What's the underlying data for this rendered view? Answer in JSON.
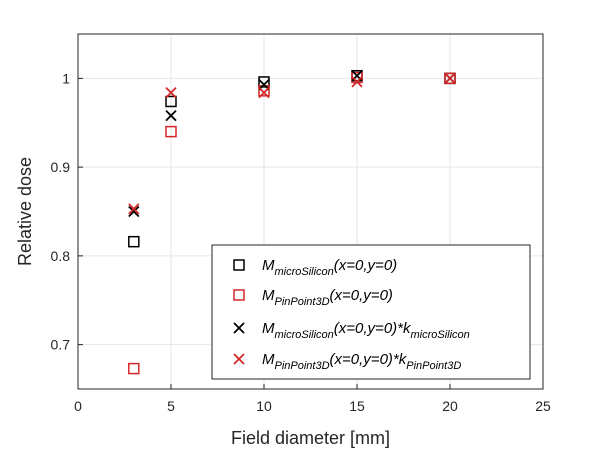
{
  "chart_data": {
    "type": "scatter",
    "xlabel": "Field diameter [mm]",
    "ylabel": "Relative dose",
    "xlim": [
      0,
      25
    ],
    "ylim": [
      0.65,
      1.05
    ],
    "xticks": [
      0,
      5,
      10,
      15,
      20,
      25
    ],
    "yticks": [
      0.7,
      0.8,
      0.9,
      1
    ],
    "ytick_labels": [
      "0.7",
      "0.8",
      "0.9",
      "1"
    ],
    "grid": true,
    "legend_position": "bottom-right",
    "series": [
      {
        "marker": "square",
        "color": "#000000",
        "legend": {
          "main": "M",
          "sub": "microSilicon",
          "rest": "(x=0,y=0)",
          "sub2": ""
        },
        "points": [
          [
            3,
            0.816
          ],
          [
            5,
            0.974
          ],
          [
            10,
            0.996
          ],
          [
            15,
            1.003
          ],
          [
            20,
            1.0
          ]
        ]
      },
      {
        "marker": "square",
        "color": "#d62728",
        "legend": {
          "main": "M",
          "sub": "PinPoint3D",
          "rest": "(x=0,y=0)",
          "sub2": ""
        },
        "points": [
          [
            3,
            0.673
          ],
          [
            5,
            0.94
          ],
          [
            10,
            0.986
          ],
          [
            15,
            1.001
          ],
          [
            20,
            1.0
          ]
        ]
      },
      {
        "marker": "x",
        "color": "#000000",
        "legend": {
          "main": "M",
          "sub": "microSilicon",
          "rest": "(x=0,y=0)*k",
          "sub2": "microSilicon"
        },
        "points": [
          [
            3,
            0.85
          ],
          [
            5,
            0.958
          ],
          [
            10,
            0.993
          ],
          [
            15,
            1.003
          ],
          [
            20,
            1.0
          ]
        ]
      },
      {
        "marker": "x",
        "color": "#d62728",
        "legend": {
          "main": "M",
          "sub": "PinPoint3D",
          "rest": "(x=0,y=0)*k",
          "sub2": "PinPoint3D"
        },
        "points": [
          [
            3,
            0.853
          ],
          [
            5,
            0.984
          ],
          [
            10,
            0.984
          ],
          [
            15,
            0.996
          ],
          [
            20,
            1.0
          ]
        ]
      }
    ]
  }
}
